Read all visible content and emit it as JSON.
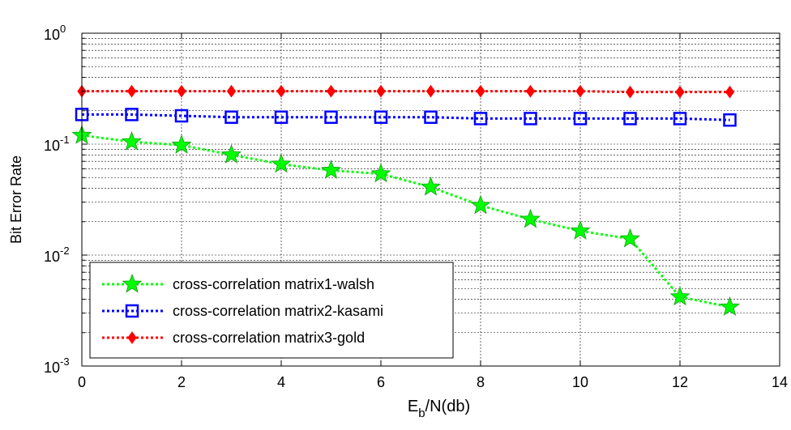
{
  "chart_data": {
    "type": "line",
    "xlabel_main": "E",
    "xlabel_sub": "b",
    "xlabel_rest": "/N(db)",
    "ylabel": "Bit Error Rate",
    "xlim": [
      0,
      14
    ],
    "ylim": [
      0.001,
      1
    ],
    "yscale": "log",
    "grid": true,
    "legend_position": "bottom-left",
    "x_ticks": [
      "0",
      "2",
      "4",
      "6",
      "8",
      "10",
      "12",
      "14"
    ],
    "y_ticks": [
      {
        "base": "10",
        "exp": "0"
      },
      {
        "base": "10",
        "exp": "-1"
      },
      {
        "base": "10",
        "exp": "-2"
      },
      {
        "base": "10",
        "exp": "-3"
      }
    ],
    "series": [
      {
        "name": "cross-correlation matrix1-walsh",
        "color": "#00ff00",
        "marker": "star",
        "x": [
          0,
          1,
          2,
          3,
          4,
          5,
          6,
          7,
          8,
          9,
          10,
          11,
          12,
          13
        ],
        "y": [
          0.12,
          0.105,
          0.098,
          0.08,
          0.066,
          0.058,
          0.054,
          0.041,
          0.028,
          0.021,
          0.0165,
          0.014,
          0.0042,
          0.0034
        ]
      },
      {
        "name": "cross-correlation matrix2-kasami",
        "color": "#0000ff",
        "marker": "square",
        "x": [
          0,
          1,
          2,
          3,
          4,
          5,
          6,
          7,
          8,
          9,
          10,
          11,
          12,
          13
        ],
        "y": [
          0.185,
          0.185,
          0.18,
          0.175,
          0.175,
          0.175,
          0.175,
          0.175,
          0.17,
          0.17,
          0.17,
          0.17,
          0.17,
          0.165
        ]
      },
      {
        "name": "cross-correlation matrix3-gold",
        "color": "#ff0000",
        "marker": "diamond",
        "x": [
          0,
          1,
          2,
          3,
          4,
          5,
          6,
          7,
          8,
          9,
          10,
          11,
          12,
          13
        ],
        "y": [
          0.3,
          0.3,
          0.3,
          0.3,
          0.3,
          0.3,
          0.3,
          0.3,
          0.3,
          0.3,
          0.3,
          0.295,
          0.295,
          0.295
        ]
      }
    ]
  }
}
